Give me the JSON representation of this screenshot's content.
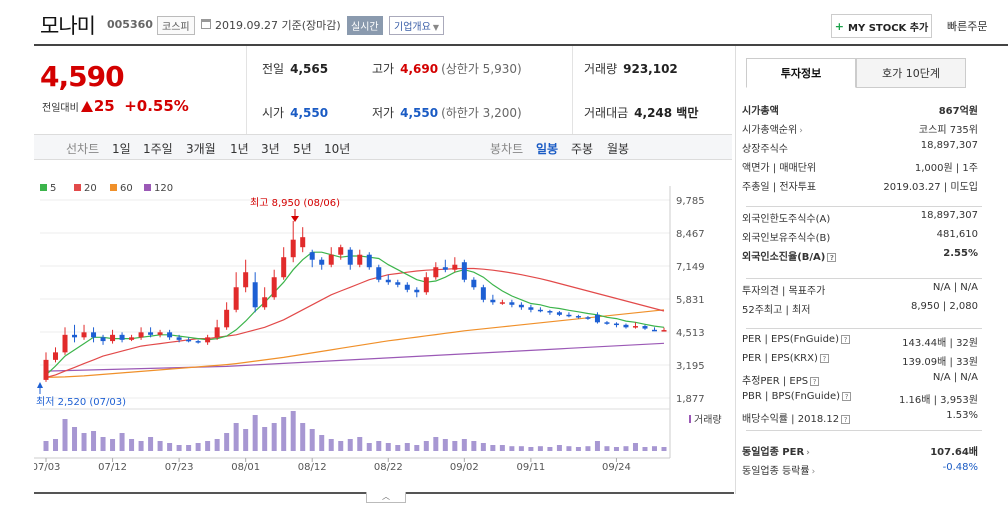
{
  "header": {
    "company_name": "모나미",
    "code": "005360",
    "market": "코스피",
    "date": "2019.09.27 기준(장마감)",
    "realtime": "실시간",
    "company_info": "기업개요",
    "mystock": "MY STOCK 추가",
    "quick_order": "빠른주문"
  },
  "price": {
    "current": "4,590",
    "change_label": "전일대비",
    "change": "25",
    "change_pct": "+0.55%"
  },
  "stats": {
    "prev_label": "전일",
    "prev": "4,565",
    "open_label": "시가",
    "open": "4,550",
    "high_label": "고가",
    "high": "4,690",
    "upper_limit": "(상한가 5,930)",
    "low_label": "저가",
    "low": "4,550",
    "lower_limit": "(하한가 3,200)",
    "volume_label": "거래량",
    "volume": "923,102",
    "amount_label": "거래대금",
    "amount": "4,248 백만"
  },
  "period_bar": {
    "line_chart": "선차트",
    "periods": [
      "1일",
      "1주일",
      "3개월",
      "1년",
      "3년",
      "5년",
      "10년"
    ],
    "candle_chart": "봉차트",
    "candle_types": [
      "일봉",
      "주봉",
      "월봉"
    ],
    "selected_candle": "일봉"
  },
  "chart_data": {
    "type": "candlestick",
    "legend": [
      "5",
      "20",
      "60",
      "120"
    ],
    "legend_colors": [
      "#3cb44b",
      "#e24a4a",
      "#f0902a",
      "#9b59b6"
    ],
    "y_ticks": [
      "9,785",
      "8,467",
      "7,149",
      "5,831",
      "4,513",
      "3,195",
      "1,877"
    ],
    "x_ticks": [
      "07/03",
      "07/12",
      "07/23",
      "08/01",
      "08/12",
      "08/22",
      "09/02",
      "09/11",
      "09/24"
    ],
    "high_annotation": "최고 8,950 (08/06)",
    "low_annotation": "최저 2,520 (07/03)",
    "volume_label": "거래량",
    "candles": [
      {
        "o": 2600,
        "c": 3400,
        "h": 3700,
        "l": 2520
      },
      {
        "o": 3400,
        "c": 3700,
        "h": 3900,
        "l": 3300
      },
      {
        "o": 3700,
        "c": 4400,
        "h": 4700,
        "l": 3600
      },
      {
        "o": 4400,
        "c": 4300,
        "h": 4800,
        "l": 4100
      },
      {
        "o": 4300,
        "c": 4500,
        "h": 4800,
        "l": 4200
      },
      {
        "o": 4500,
        "c": 4300,
        "h": 4700,
        "l": 4100
      },
      {
        "o": 4300,
        "c": 4150,
        "h": 4400,
        "l": 4000
      },
      {
        "o": 4150,
        "c": 4400,
        "h": 4600,
        "l": 4050
      },
      {
        "o": 4400,
        "c": 4200,
        "h": 4500,
        "l": 4100
      },
      {
        "o": 4200,
        "c": 4300,
        "h": 4400,
        "l": 4150
      },
      {
        "o": 4300,
        "c": 4500,
        "h": 4700,
        "l": 4200
      },
      {
        "o": 4500,
        "c": 4400,
        "h": 4700,
        "l": 4300
      },
      {
        "o": 4400,
        "c": 4500,
        "h": 4600,
        "l": 4300
      },
      {
        "o": 4500,
        "c": 4300,
        "h": 4600,
        "l": 4200
      },
      {
        "o": 4300,
        "c": 4200,
        "h": 4400,
        "l": 4100
      },
      {
        "o": 4200,
        "c": 4150,
        "h": 4300,
        "l": 4100
      },
      {
        "o": 4150,
        "c": 4100,
        "h": 4200,
        "l": 4050
      },
      {
        "o": 4100,
        "c": 4300,
        "h": 4400,
        "l": 4000
      },
      {
        "o": 4300,
        "c": 4700,
        "h": 5000,
        "l": 4200
      },
      {
        "o": 4700,
        "c": 5400,
        "h": 5700,
        "l": 4600
      },
      {
        "o": 5400,
        "c": 6300,
        "h": 6900,
        "l": 5300
      },
      {
        "o": 6300,
        "c": 6900,
        "h": 7400,
        "l": 6100
      },
      {
        "o": 6500,
        "c": 5500,
        "h": 6900,
        "l": 5300
      },
      {
        "o": 5500,
        "c": 5900,
        "h": 6300,
        "l": 5400
      },
      {
        "o": 5900,
        "c": 6700,
        "h": 7000,
        "l": 5800
      },
      {
        "o": 6700,
        "c": 7500,
        "h": 7900,
        "l": 6600
      },
      {
        "o": 7500,
        "c": 8200,
        "h": 8950,
        "l": 7300
      },
      {
        "o": 7900,
        "c": 8300,
        "h": 8700,
        "l": 7700
      },
      {
        "o": 7700,
        "c": 7400,
        "h": 7800,
        "l": 7100
      },
      {
        "o": 7400,
        "c": 7200,
        "h": 7500,
        "l": 7000
      },
      {
        "o": 7200,
        "c": 7600,
        "h": 7900,
        "l": 7100
      },
      {
        "o": 7600,
        "c": 7900,
        "h": 8000,
        "l": 7400
      },
      {
        "o": 7800,
        "c": 7200,
        "h": 7900,
        "l": 7000
      },
      {
        "o": 7200,
        "c": 7600,
        "h": 7800,
        "l": 7100
      },
      {
        "o": 7600,
        "c": 7100,
        "h": 7700,
        "l": 7000
      },
      {
        "o": 7100,
        "c": 6600,
        "h": 7200,
        "l": 6500
      },
      {
        "o": 6600,
        "c": 6500,
        "h": 6800,
        "l": 6400
      },
      {
        "o": 6500,
        "c": 6400,
        "h": 6600,
        "l": 6300
      },
      {
        "o": 6400,
        "c": 6200,
        "h": 6500,
        "l": 6100
      },
      {
        "o": 6200,
        "c": 6100,
        "h": 6300,
        "l": 5900
      },
      {
        "o": 6100,
        "c": 6700,
        "h": 6900,
        "l": 6000
      },
      {
        "o": 6700,
        "c": 7100,
        "h": 7300,
        "l": 6600
      },
      {
        "o": 7100,
        "c": 7000,
        "h": 7400,
        "l": 6900
      },
      {
        "o": 7000,
        "c": 7200,
        "h": 7500,
        "l": 6900
      },
      {
        "o": 7300,
        "c": 6600,
        "h": 7400,
        "l": 6500
      },
      {
        "o": 6600,
        "c": 6300,
        "h": 6700,
        "l": 6200
      },
      {
        "o": 6300,
        "c": 5800,
        "h": 6400,
        "l": 5700
      },
      {
        "o": 5800,
        "c": 5700,
        "h": 6000,
        "l": 5600
      },
      {
        "o": 5700,
        "c": 5700,
        "h": 5800,
        "l": 5600
      },
      {
        "o": 5700,
        "c": 5600,
        "h": 5800,
        "l": 5500
      },
      {
        "o": 5600,
        "c": 5500,
        "h": 5700,
        "l": 5400
      },
      {
        "o": 5500,
        "c": 5400,
        "h": 5600,
        "l": 5300
      },
      {
        "o": 5400,
        "c": 5350,
        "h": 5500,
        "l": 5300
      },
      {
        "o": 5350,
        "c": 5300,
        "h": 5400,
        "l": 5200
      },
      {
        "o": 5300,
        "c": 5200,
        "h": 5350,
        "l": 5150
      },
      {
        "o": 5200,
        "c": 5150,
        "h": 5300,
        "l": 5100
      },
      {
        "o": 5150,
        "c": 5100,
        "h": 5200,
        "l": 5050
      },
      {
        "o": 5100,
        "c": 5050,
        "h": 5150,
        "l": 5000
      },
      {
        "o": 5200,
        "c": 4900,
        "h": 5300,
        "l": 4850
      },
      {
        "o": 4900,
        "c": 4850,
        "h": 4950,
        "l": 4800
      },
      {
        "o": 4850,
        "c": 4800,
        "h": 4900,
        "l": 4700
      },
      {
        "o": 4800,
        "c": 4700,
        "h": 4850,
        "l": 4650
      },
      {
        "o": 4700,
        "c": 4750,
        "h": 4900,
        "l": 4650
      },
      {
        "o": 4750,
        "c": 4650,
        "h": 4800,
        "l": 4600
      },
      {
        "o": 4600,
        "c": 4565,
        "h": 4700,
        "l": 4550
      },
      {
        "o": 4550,
        "c": 4590,
        "h": 4690,
        "l": 4550
      }
    ],
    "ma5": [
      2800,
      3150,
      3550,
      3800,
      4050,
      4300,
      4300,
      4250,
      4250,
      4250,
      4300,
      4350,
      4400,
      4400,
      4350,
      4300,
      4250,
      4200,
      4250,
      4350,
      4600,
      4950,
      5350,
      5700,
      6100,
      6500,
      7000,
      7400,
      7700,
      7700,
      7600,
      7500,
      7550,
      7550,
      7500,
      7450,
      7200,
      7000,
      6800,
      6600,
      6500,
      6550,
      6700,
      6900,
      7000,
      6900,
      6700,
      6400,
      6150,
      5950,
      5800,
      5650,
      5600,
      5500,
      5450,
      5380,
      5320,
      5250,
      5200,
      5100,
      5050,
      4950,
      4900,
      4820,
      4750,
      4700
    ],
    "ma20": [
      2700,
      2800,
      2950,
      3100,
      3250,
      3400,
      3550,
      3650,
      3750,
      3850,
      3950,
      4000,
      4050,
      4100,
      4150,
      4200,
      4250,
      4250,
      4300,
      4350,
      4400,
      4500,
      4600,
      4700,
      4850,
      5000,
      5200,
      5400,
      5600,
      5800,
      6000,
      6150,
      6300,
      6450,
      6600,
      6700,
      6800,
      6850,
      6900,
      6950,
      6980,
      7000,
      7020,
      7040,
      7050,
      7050,
      7020,
      6980,
      6930,
      6870,
      6800,
      6720,
      6640,
      6550,
      6450,
      6350,
      6250,
      6150,
      6050,
      5950,
      5850,
      5750,
      5650,
      5550,
      5450,
      5350
    ],
    "ma60": [
      2700,
      2710,
      2720,
      2740,
      2760,
      2790,
      2820,
      2850,
      2880,
      2910,
      2940,
      2970,
      3000,
      3030,
      3060,
      3090,
      3120,
      3150,
      3180,
      3210,
      3250,
      3300,
      3350,
      3400,
      3450,
      3500,
      3560,
      3620,
      3680,
      3740,
      3800,
      3860,
      3920,
      3980,
      4040,
      4100,
      4160,
      4210,
      4260,
      4310,
      4360,
      4410,
      4460,
      4510,
      4560,
      4600,
      4640,
      4680,
      4720,
      4760,
      4800,
      4840,
      4880,
      4920,
      4960,
      5000,
      5040,
      5080,
      5120,
      5160,
      5200,
      5240,
      5280,
      5320,
      5360,
      5400
    ],
    "ma120": [
      2950,
      2960,
      2970,
      2980,
      2990,
      3000,
      3010,
      3020,
      3030,
      3040,
      3050,
      3060,
      3070,
      3080,
      3090,
      3100,
      3110,
      3120,
      3130,
      3140,
      3160,
      3180,
      3200,
      3220,
      3240,
      3260,
      3280,
      3300,
      3320,
      3340,
      3360,
      3380,
      3400,
      3420,
      3440,
      3460,
      3480,
      3500,
      3520,
      3540,
      3560,
      3580,
      3600,
      3620,
      3640,
      3660,
      3680,
      3700,
      3720,
      3740,
      3760,
      3780,
      3800,
      3820,
      3840,
      3860,
      3880,
      3900,
      3920,
      3940,
      3960,
      3980,
      4000,
      4020,
      4040,
      4060
    ],
    "volume": [
      0.25,
      0.3,
      0.8,
      0.6,
      0.45,
      0.5,
      0.35,
      0.3,
      0.45,
      0.3,
      0.25,
      0.35,
      0.25,
      0.2,
      0.15,
      0.15,
      0.2,
      0.25,
      0.3,
      0.45,
      0.7,
      0.55,
      0.9,
      0.6,
      0.7,
      0.85,
      1.0,
      0.7,
      0.55,
      0.4,
      0.3,
      0.25,
      0.3,
      0.35,
      0.2,
      0.25,
      0.2,
      0.15,
      0.2,
      0.15,
      0.25,
      0.35,
      0.3,
      0.25,
      0.3,
      0.25,
      0.2,
      0.15,
      0.15,
      0.12,
      0.12,
      0.1,
      0.12,
      0.1,
      0.15,
      0.12,
      0.1,
      0.12,
      0.25,
      0.12,
      0.1,
      0.12,
      0.2,
      0.1,
      0.12,
      0.1
    ]
  },
  "panel": {
    "tab_info": "투자정보",
    "tab_hoga": "호가 10단계",
    "rows1": [
      {
        "k": "시가총액",
        "v": "867억원",
        "bold": true
      },
      {
        "k": "시가총액순위",
        "v": "코스피 735위",
        "chev": true
      },
      {
        "k": "상장주식수",
        "v": "18,897,307"
      },
      {
        "k": "액면가 | 매매단위",
        "v": "1,000원 | 1주"
      },
      {
        "k": "주총일 | 전자투표",
        "v": "2019.03.27 | 미도입"
      }
    ],
    "rows2": [
      {
        "k": "외국인한도주식수(A)",
        "v": "18,897,307"
      },
      {
        "k": "외국인보유주식수(B)",
        "v": "481,610"
      },
      {
        "k": "외국인소진율(B/A)",
        "v": "2.55%",
        "bold": true,
        "q": true
      }
    ],
    "rows3": [
      {
        "k": "투자의견 | 목표주가",
        "v": "N/A | N/A"
      },
      {
        "k": "52주최고 | 최저",
        "v": "8,950 | 2,080"
      }
    ],
    "rows4": [
      {
        "k": "PER | EPS(FnGuide)",
        "v": "143.44배 | 32원",
        "q": true
      },
      {
        "k": "PER | EPS(KRX)",
        "v": "139.09배 | 33원",
        "q": true
      },
      {
        "k": "추정PER | EPS",
        "v": "N/A | N/A",
        "q": true
      },
      {
        "k": "PBR | BPS(FnGuide)",
        "v": "1.16배 | 3,953원",
        "q": true
      },
      {
        "k": "배당수익률 | 2018.12",
        "v": "1.53%",
        "q": true
      }
    ],
    "rows5": [
      {
        "k": "동일업종 PER",
        "v": "107.64배",
        "bold": true,
        "chev": true
      },
      {
        "k": "동일업종 등락률",
        "v": "-0.48%",
        "blue": true,
        "chev": true
      }
    ]
  }
}
